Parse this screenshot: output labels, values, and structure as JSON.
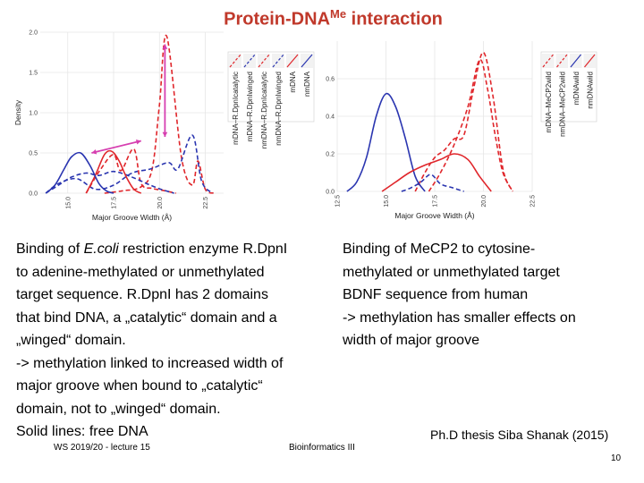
{
  "slide": {
    "title_main": "Protein-DNA",
    "title_sup": "Me",
    "title_tail": " interaction",
    "left_text": {
      "l1_pre": "Binding of ",
      "l1_italic": "E.coli",
      "l1_post": " restriction enzyme R.DpnI",
      "l2": "to adenine-methylated or unmethylated",
      "l3": "target sequence. R.DpnI has 2 domains",
      "l4": "that bind DNA, a „catalytic“ domain and a",
      "l5": "„winged“ domain.",
      "l6": "-> methylation linked to increased width of",
      "l7": "major groove when bound to „catalytic“",
      "l8": "domain, not to „winged“ domain.",
      "l9": "Solid lines: free DNA"
    },
    "right_text": {
      "l1": "Binding of MeCP2 to cytosine-",
      "l2": "methylated or unmethylated target",
      "l3": "BDNF sequence from human",
      "l4": "-> methylation has smaller effects on",
      "l5": "width of major groove"
    },
    "citation": "Ph.D thesis Siba Shanak (2015)",
    "footer_left": "WS 2019/20 - lecture 15",
    "footer_center": "Bioinformatics III",
    "page_number": "10"
  },
  "colors": {
    "title": "#c0392b",
    "red": "#e0262b",
    "blue": "#2a35b0",
    "arrow": "#d63fb0",
    "grid": "#e6e6e6"
  },
  "chart_data": [
    {
      "type": "line",
      "title": "",
      "xlabel": "Major Groove Width (Å)",
      "ylabel": "Density",
      "xlim": [
        13.5,
        23.5
      ],
      "ylim": [
        0,
        2.0
      ],
      "x_ticks": [
        15.0,
        17.5,
        20.0,
        22.5
      ],
      "x_tick_labels": [
        "15.0",
        "17.5",
        "20.0",
        "22.5"
      ],
      "y_ticks": [
        0.0,
        0.5,
        1.0,
        1.5,
        2.0
      ],
      "y_tick_labels": [
        "0.0",
        "0.5",
        "1.0",
        "1.5",
        "2.0"
      ],
      "legend": [
        "mDNA–R.DpnIcatalytic",
        "mDNA–R.DpnIwinged",
        "nmDNA–R.DpnIcatalytic",
        "nmDNA–R.DpnIwinged",
        "mDNA",
        "nmDNA"
      ],
      "legend_position": "top-right",
      "series": [
        {
          "name": "mDNA–R.DpnIcatalytic",
          "color": "red",
          "dash": "dashed",
          "x": [
            17.0,
            18.0,
            19.0,
            19.6,
            20.0,
            20.4,
            21.2,
            21.8,
            22.1,
            22.5,
            23.0
          ],
          "y": [
            0,
            0.03,
            0.08,
            0.3,
            1.1,
            1.95,
            0.45,
            0.1,
            0.4,
            0.05,
            0
          ]
        },
        {
          "name": "mDNA–R.DpnIwinged",
          "color": "blue",
          "dash": "dashed",
          "x": [
            13.8,
            14.5,
            15.5,
            16.5,
            17.5,
            18.5,
            19.5,
            20.5,
            21.0,
            21.8,
            22.3,
            22.9
          ],
          "y": [
            0,
            0.12,
            0.18,
            0.05,
            0.1,
            0.25,
            0.3,
            0.38,
            0.3,
            0.72,
            0.15,
            0
          ]
        },
        {
          "name": "nmDNA–R.DpnIcatalytic",
          "color": "red",
          "dash": "dashed",
          "x": [
            16.0,
            16.8,
            17.5,
            17.9,
            18.6,
            19.0,
            19.6,
            20.3,
            20.9
          ],
          "y": [
            0,
            0.3,
            0.48,
            0.28,
            0.55,
            0.12,
            0.06,
            0.03,
            0
          ]
        },
        {
          "name": "nmDNA–R.DpnIwinged",
          "color": "blue",
          "dash": "dashed",
          "x": [
            13.8,
            14.5,
            15.2,
            16.0,
            16.7,
            17.5,
            18.5,
            19.5,
            20.2,
            20.8
          ],
          "y": [
            0,
            0.1,
            0.2,
            0.25,
            0.22,
            0.27,
            0.2,
            0.1,
            0.04,
            0
          ]
        },
        {
          "name": "mDNA",
          "color": "red",
          "dash": "solid",
          "x": [
            16.0,
            16.5,
            17.0,
            17.4,
            17.8,
            18.2,
            18.6,
            19.0
          ],
          "y": [
            0,
            0.22,
            0.48,
            0.52,
            0.4,
            0.2,
            0.05,
            0
          ]
        },
        {
          "name": "nmDNA",
          "color": "blue",
          "dash": "solid",
          "x": [
            13.8,
            14.3,
            14.8,
            15.2,
            15.7,
            16.2,
            16.7,
            17.1,
            17.5
          ],
          "y": [
            0,
            0.1,
            0.3,
            0.45,
            0.5,
            0.35,
            0.12,
            0.03,
            0
          ]
        }
      ],
      "annotations": [
        {
          "kind": "double-arrow",
          "from": [
            16.3,
            0.5
          ],
          "to": [
            19.0,
            0.65
          ]
        },
        {
          "kind": "double-arrow",
          "from": [
            20.3,
            1.85
          ],
          "to": [
            20.3,
            0.7
          ]
        }
      ]
    },
    {
      "type": "line",
      "title": "",
      "xlabel": "Major Groove Width (Å)",
      "ylabel": "",
      "xlim": [
        12.5,
        22.5
      ],
      "ylim": [
        0,
        0.8
      ],
      "x_ticks": [
        12.5,
        15.0,
        17.5,
        20.0,
        22.5
      ],
      "x_tick_labels": [
        "12.5",
        "15.0",
        "17.5",
        "20.0",
        "22.5"
      ],
      "y_ticks": [
        0.0,
        0.2,
        0.4,
        0.6
      ],
      "y_tick_labels": [
        "0.0",
        "0.2",
        "0.4",
        "0.6"
      ],
      "legend": [
        "mDNA–MeCP2wild",
        "nmDNA–MeCP2wild",
        "mDNAwild",
        "nmDNAwild"
      ],
      "legend_position": "top-right",
      "series": [
        {
          "name": "mDNA–MeCP2wild",
          "color": "red",
          "dash": "dashed",
          "x": [
            16.5,
            17.0,
            17.5,
            18.0,
            18.5,
            19.0,
            19.5,
            20.0,
            20.5,
            21.0,
            21.5
          ],
          "y": [
            0,
            0.1,
            0.18,
            0.22,
            0.28,
            0.3,
            0.55,
            0.74,
            0.5,
            0.12,
            0
          ]
        },
        {
          "name": "nmDNA–MeCP2wild",
          "color": "red",
          "dash": "dashed",
          "x": [
            17.2,
            17.8,
            18.5,
            19.2,
            19.8,
            20.2,
            20.6,
            21.0,
            21.5
          ],
          "y": [
            0,
            0.1,
            0.25,
            0.45,
            0.7,
            0.55,
            0.3,
            0.1,
            0
          ]
        },
        {
          "name": "mDNAwild",
          "color": "blue",
          "dash": "solid",
          "x": [
            13.0,
            13.5,
            14.0,
            14.5,
            15.0,
            15.5,
            16.0,
            16.5,
            17.0
          ],
          "y": [
            0,
            0.05,
            0.18,
            0.4,
            0.52,
            0.45,
            0.28,
            0.08,
            0
          ]
        },
        {
          "name": "nmDNAwild",
          "color": "red",
          "dash": "solid",
          "x": [
            14.8,
            15.5,
            16.2,
            17.0,
            17.8,
            18.5,
            19.2,
            19.8,
            20.4
          ],
          "y": [
            0,
            0.05,
            0.1,
            0.14,
            0.17,
            0.2,
            0.17,
            0.08,
            0
          ]
        },
        {
          "name": "MeCP2 (blue dashed, low)",
          "color": "blue",
          "dash": "dashed",
          "x": [
            15.8,
            16.3,
            16.8,
            17.3,
            17.8,
            18.4,
            19.0
          ],
          "y": [
            0,
            0.02,
            0.05,
            0.09,
            0.04,
            0.02,
            0
          ]
        }
      ]
    }
  ]
}
